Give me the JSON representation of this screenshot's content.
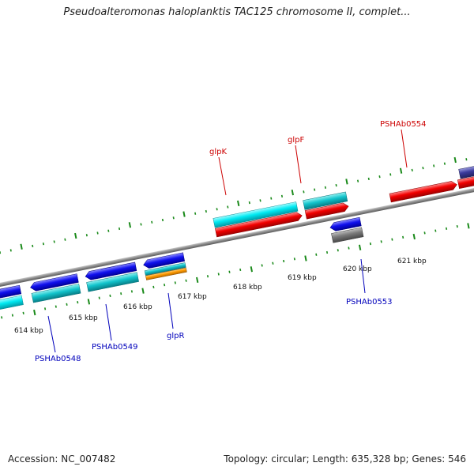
{
  "header": {
    "title": "Pseudoalteromonas haloplanktis TAC125 chromosome II, complet..."
  },
  "footer": {
    "accession": "Accession: NC_007482",
    "stats": "Topology: circular; Length: 635,328 bp; Genes: 546"
  },
  "colors": {
    "tick": "#1a8a1a",
    "backbone": "#8c8c8c",
    "forward_label": "#cc0000",
    "reverse_label": "#0000bb"
  },
  "scale": {
    "unit": "kbp",
    "labels": [
      "614 kbp",
      "615 kbp",
      "616 kbp",
      "617 kbp",
      "618 kbp",
      "619 kbp",
      "620 kbp",
      "621 kbp"
    ]
  },
  "gene_labels": {
    "forward": [
      "glpK",
      "glpF",
      "PSHAb0554"
    ],
    "reverse": [
      "PSHAb0548",
      "PSHAb0549",
      "glpR",
      "PSHAb0553"
    ]
  }
}
